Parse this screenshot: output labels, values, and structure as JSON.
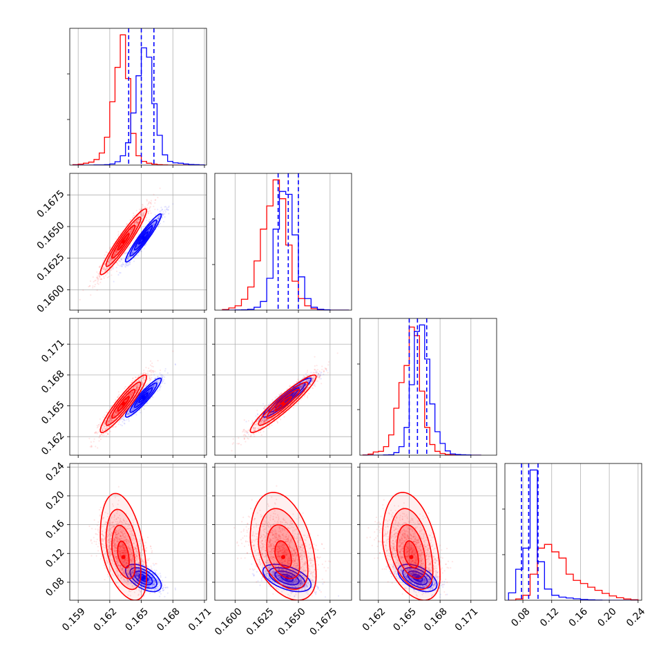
{
  "colors": {
    "blue": "#0000ff",
    "red": "#ff0000",
    "grid": "#b0b0b0",
    "axis": "#000000"
  },
  "chart_data": {
    "type": "corner",
    "grid": true,
    "legend": "none",
    "parameters": [
      {
        "range": [
          0.1582,
          0.1712
        ],
        "ticks": [
          0.159,
          0.162,
          0.165,
          0.168,
          0.171
        ],
        "tick_labels": [
          "0.159",
          "0.162",
          "0.165",
          "0.168",
          "0.171"
        ]
      },
      {
        "range": [
          0.1584,
          0.1692
        ],
        "ticks": [
          0.16,
          0.1625,
          0.165,
          0.1675
        ],
        "tick_labels": [
          "0.1600",
          "0.1625",
          "0.1650",
          "0.1675"
        ]
      },
      {
        "range": [
          0.1602,
          0.1735
        ],
        "ticks": [
          0.162,
          0.165,
          0.168,
          0.171
        ],
        "tick_labels": [
          "0.162",
          "0.165",
          "0.168",
          "0.171"
        ]
      },
      {
        "range": [
          0.055,
          0.245
        ],
        "ticks": [
          0.08,
          0.12,
          0.16,
          0.2,
          0.24
        ],
        "tick_labels": [
          "0.08",
          "0.12",
          "0.16",
          "0.20",
          "0.24"
        ]
      }
    ],
    "series": [
      {
        "color": "#0000ff",
        "means": [
          0.1652,
          0.1641,
          0.1658,
          0.086
        ],
        "sigmas": [
          0.00085,
          0.00095,
          0.00095,
          0.0095
        ],
        "quantiles": [
          [
            0.1638,
            0.165,
            0.1662
          ],
          [
            0.1634,
            0.1642,
            0.165
          ],
          [
            0.165,
            0.1658,
            0.1667
          ],
          [
            0.078,
            0.088,
            0.101
          ]
        ],
        "correlations": {
          "1-0": 0.95,
          "2-0": 0.93,
          "2-1": 0.94,
          "3-0": -0.55,
          "3-1": -0.5,
          "3-2": -0.5
        },
        "histograms": [
          {
            "edges": [
              0.1585,
              0.159,
              0.1595,
              0.16,
              0.1605,
              0.161,
              0.1615,
              0.162,
              0.1625,
              0.163,
              0.1635,
              0.164,
              0.1645,
              0.165,
              0.1655,
              0.166,
              0.1665,
              0.167,
              0.1675,
              0.168,
              0.1685,
              0.169,
              0.1695,
              0.17,
              0.1705,
              0.171
            ],
            "counts": [
              0,
              0,
              0,
              0,
              1,
              1,
              2,
              6,
              18,
              50,
              120,
              280,
              480,
              630,
              580,
              330,
              160,
              55,
              20,
              12,
              10,
              6,
              3,
              2,
              1
            ]
          },
          {
            "edges": [
              0.159,
              0.1595,
              0.16,
              0.1605,
              0.161,
              0.1615,
              0.162,
              0.1625,
              0.163,
              0.1635,
              0.164,
              0.1645,
              0.165,
              0.1655,
              0.166,
              0.1665,
              0.167,
              0.1675,
              0.168,
              0.1685,
              0.169
            ],
            "counts": [
              0,
              0,
              1,
              2,
              6,
              20,
              60,
              220,
              560,
              820,
              800,
              520,
              230,
              80,
              20,
              6,
              2,
              0,
              0,
              0
            ]
          },
          {
            "edges": [
              0.1605,
              0.161,
              0.1615,
              0.162,
              0.1625,
              0.163,
              0.1635,
              0.164,
              0.1645,
              0.165,
              0.1655,
              0.166,
              0.1665,
              0.167,
              0.1675,
              0.168,
              0.1685,
              0.169,
              0.1695,
              0.17,
              0.1705,
              0.171,
              0.1715,
              0.172
            ],
            "counts": [
              0,
              0,
              0,
              0,
              1,
              2,
              12,
              40,
              130,
              330,
              580,
              610,
              450,
              240,
              110,
              55,
              20,
              6,
              3,
              2,
              1,
              0,
              0
            ]
          },
          {
            "edges": [
              0.06,
              0.07,
              0.08,
              0.09,
              0.1,
              0.11,
              0.12,
              0.13,
              0.14,
              0.15,
              0.16,
              0.17,
              0.18,
              0.19,
              0.2,
              0.21,
              0.22,
              0.23,
              0.24
            ],
            "counts": [
              60,
              250,
              420,
              1050,
              310,
              90,
              40,
              25,
              18,
              12,
              6,
              3,
              1,
              0,
              0,
              0,
              0,
              0
            ]
          }
        ]
      },
      {
        "color": "#ff0000",
        "means": [
          0.1633,
          0.1638,
          0.1652,
          0.115
        ],
        "sigmas": [
          0.0011,
          0.0013,
          0.0014,
          0.03
        ],
        "quantiles": null,
        "correlations": {
          "1-0": 0.95,
          "2-0": 0.93,
          "2-1": 0.94,
          "3-0": -0.5,
          "3-1": -0.45,
          "3-2": -0.45
        },
        "histograms": [
          {
            "edges": [
              0.1585,
              0.159,
              0.1595,
              0.16,
              0.1605,
              0.161,
              0.1615,
              0.162,
              0.1625,
              0.163,
              0.1635,
              0.164,
              0.1645,
              0.165,
              0.1655,
              0.166,
              0.1665,
              0.167,
              0.1675,
              0.168,
              0.1685,
              0.169,
              0.1695,
              0.17,
              0.1705,
              0.171
            ],
            "counts": [
              2,
              5,
              10,
              16,
              30,
              65,
              150,
              340,
              525,
              700,
              465,
              170,
              50,
              20,
              10,
              5,
              2,
              1,
              0,
              0,
              0,
              0,
              0,
              0,
              0
            ]
          },
          {
            "edges": [
              0.159,
              0.1595,
              0.16,
              0.1605,
              0.161,
              0.1615,
              0.162,
              0.1625,
              0.163,
              0.1635,
              0.164,
              0.1645,
              0.165,
              0.1655,
              0.166,
              0.1665,
              0.167,
              0.1675,
              0.168,
              0.1685,
              0.169
            ],
            "counts": [
              4,
              15,
              30,
              75,
              160,
              340,
              560,
              720,
              900,
              770,
              450,
              200,
              80,
              30,
              10,
              4,
              1,
              0,
              0,
              0
            ]
          },
          {
            "edges": [
              0.1605,
              0.161,
              0.1615,
              0.162,
              0.1625,
              0.163,
              0.1635,
              0.164,
              0.1645,
              0.165,
              0.1655,
              0.166,
              0.1665,
              0.167,
              0.1675,
              0.168,
              0.1685,
              0.169,
              0.1695,
              0.17,
              0.1705,
              0.171,
              0.1715,
              0.172
            ],
            "counts": [
              1,
              5,
              15,
              18,
              40,
              95,
              220,
              340,
              420,
              600,
              560,
              300,
              130,
              50,
              18,
              8,
              3,
              1,
              0,
              0,
              0,
              0,
              0
            ]
          },
          {
            "edges": [
              0.06,
              0.07,
              0.08,
              0.09,
              0.1,
              0.11,
              0.12,
              0.13,
              0.14,
              0.15,
              0.16,
              0.17,
              0.18,
              0.19,
              0.2,
              0.21,
              0.22,
              0.23,
              0.24
            ],
            "counts": [
              0,
              10,
              40,
              210,
              420,
              450,
              390,
              340,
              210,
              160,
              135,
              105,
              80,
              55,
              35,
              20,
              10,
              4
            ]
          }
        ]
      }
    ]
  }
}
